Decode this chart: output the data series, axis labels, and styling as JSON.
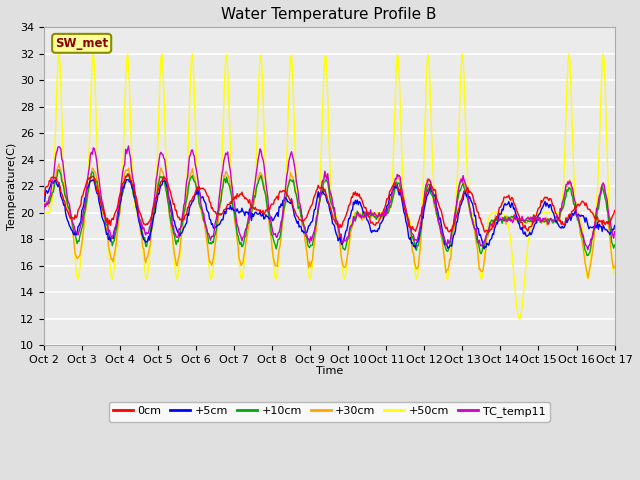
{
  "title": "Water Temperature Profile B",
  "xlabel": "Time",
  "ylabel": "Temperature(C)",
  "ylim": [
    10,
    34
  ],
  "yticks": [
    10,
    12,
    14,
    16,
    18,
    20,
    22,
    24,
    26,
    28,
    30,
    32,
    34
  ],
  "x_tick_labels": [
    "Oct 2",
    "Oct 3",
    "Oct 4",
    "Oct 5",
    "Oct 6",
    "Oct 7",
    "Oct 8",
    "Oct 9",
    "Oct 10",
    "Oct 11",
    "Oct 12",
    "Oct 13",
    "Oct 14",
    "Oct 15",
    "Oct 16",
    "Oct 17"
  ],
  "annotation_text": "SW_met",
  "annotation_color": "#8B0000",
  "annotation_bg": "#FFFF99",
  "annotation_border": "#8B8B00",
  "series_colors": {
    "0cm": "#FF0000",
    "+5cm": "#0000FF",
    "+10cm": "#00AA00",
    "+30cm": "#FFA500",
    "+50cm": "#FFFF00",
    "TC_temp11": "#CC00CC"
  },
  "bg_color": "#E0E0E0",
  "plot_bg": "#EBEBEB",
  "grid_color": "#FFFFFF",
  "title_fontsize": 11,
  "axis_fontsize": 8,
  "tick_fontsize": 8
}
